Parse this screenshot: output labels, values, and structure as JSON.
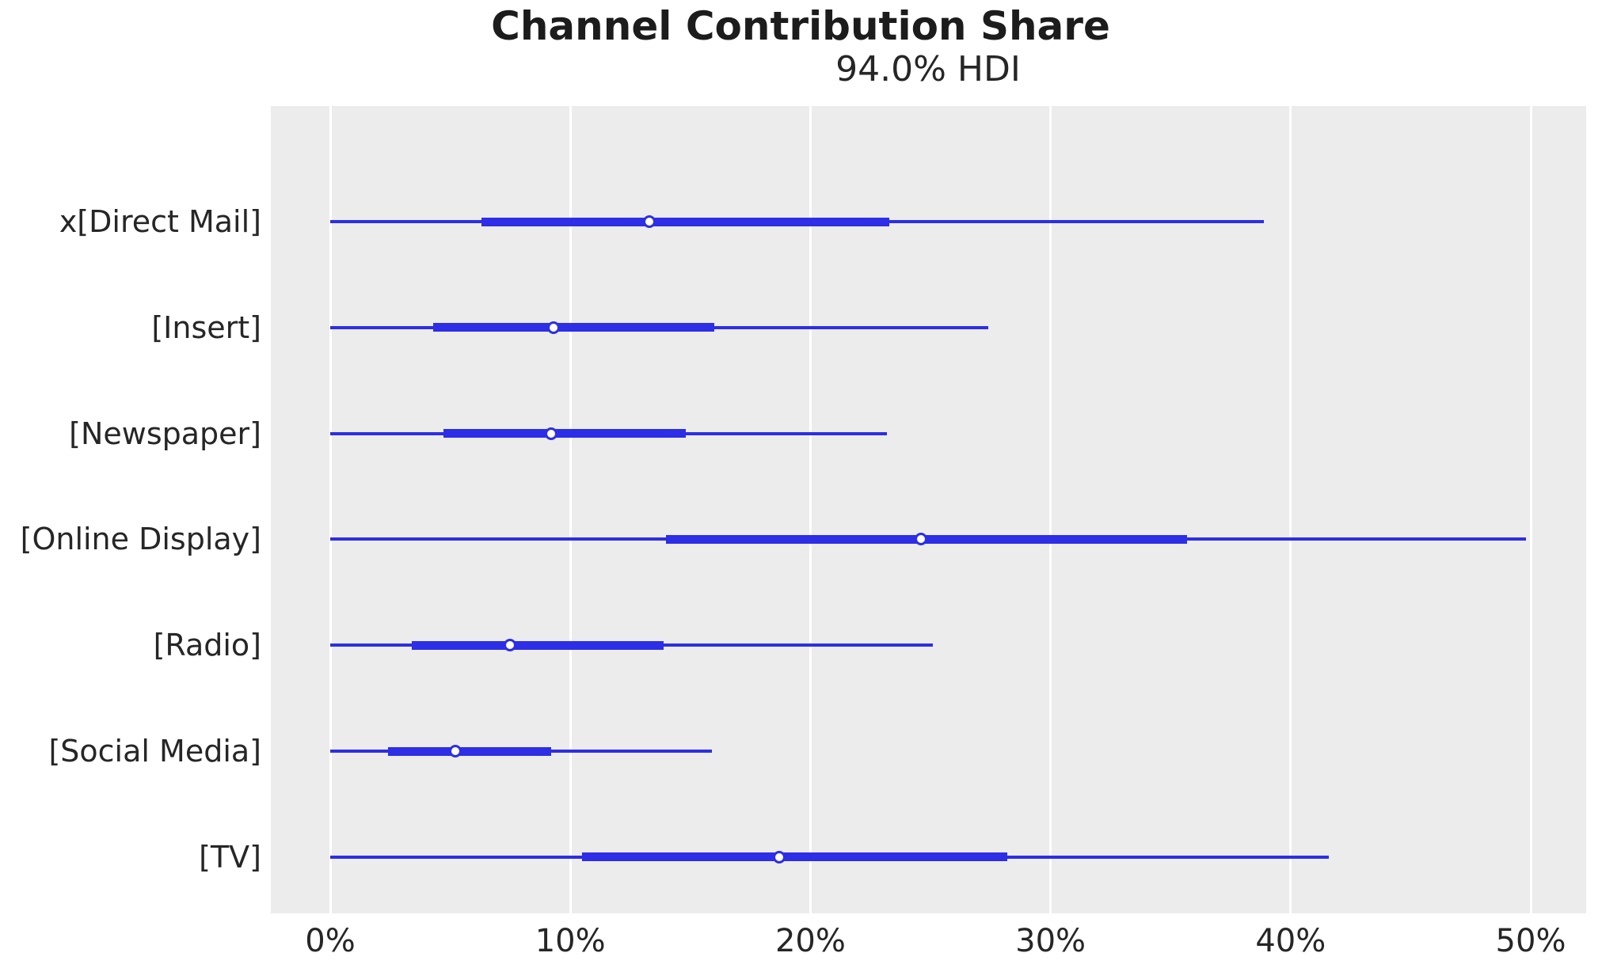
{
  "chart_data": {
    "type": "forest_plot",
    "title": "Channel Contribution Share",
    "subtitle": "94.0% HDI",
    "hdi_probability": 94.0,
    "x_unit": "percent",
    "xlim": [
      -2.5,
      52.3
    ],
    "grid": "vertical-only",
    "legend": "none",
    "x_ticks": [
      {
        "value": 0,
        "label": "0%"
      },
      {
        "value": 10,
        "label": "10%"
      },
      {
        "value": 20,
        "label": "20%"
      },
      {
        "value": 30,
        "label": "30%"
      },
      {
        "value": 40,
        "label": "40%"
      },
      {
        "value": 50,
        "label": "50%"
      }
    ],
    "series": [
      {
        "label": "x[Direct Mail]",
        "hdi_low": 0,
        "hdi_high": 38.9,
        "quartile_low": 6.3,
        "quartile_high": 23.3,
        "median": 13.3
      },
      {
        "label": "[Insert]",
        "hdi_low": 0,
        "hdi_high": 27.4,
        "quartile_low": 4.3,
        "quartile_high": 16.0,
        "median": 9.3
      },
      {
        "label": "[Newspaper]",
        "hdi_low": 0,
        "hdi_high": 23.2,
        "quartile_low": 4.7,
        "quartile_high": 14.8,
        "median": 9.2
      },
      {
        "label": "[Online Display]",
        "hdi_low": 0,
        "hdi_high": 49.8,
        "quartile_low": 14.0,
        "quartile_high": 35.7,
        "median": 24.6
      },
      {
        "label": "[Radio]",
        "hdi_low": 0,
        "hdi_high": 25.1,
        "quartile_low": 3.4,
        "quartile_high": 13.9,
        "median": 7.5
      },
      {
        "label": "[Social Media]",
        "hdi_low": 0,
        "hdi_high": 15.9,
        "quartile_low": 2.4,
        "quartile_high": 9.2,
        "median": 5.2
      },
      {
        "label": "[TV]",
        "hdi_low": 0,
        "hdi_high": 41.6,
        "quartile_low": 10.5,
        "quartile_high": 28.2,
        "median": 18.7
      }
    ],
    "colors": {
      "line": "#2d2ee6",
      "plot_background": "#ececec",
      "gridline": "#ffffff",
      "text": "#262626",
      "title_text": "#1c1c1c",
      "figure_background": "#ffffff"
    }
  }
}
